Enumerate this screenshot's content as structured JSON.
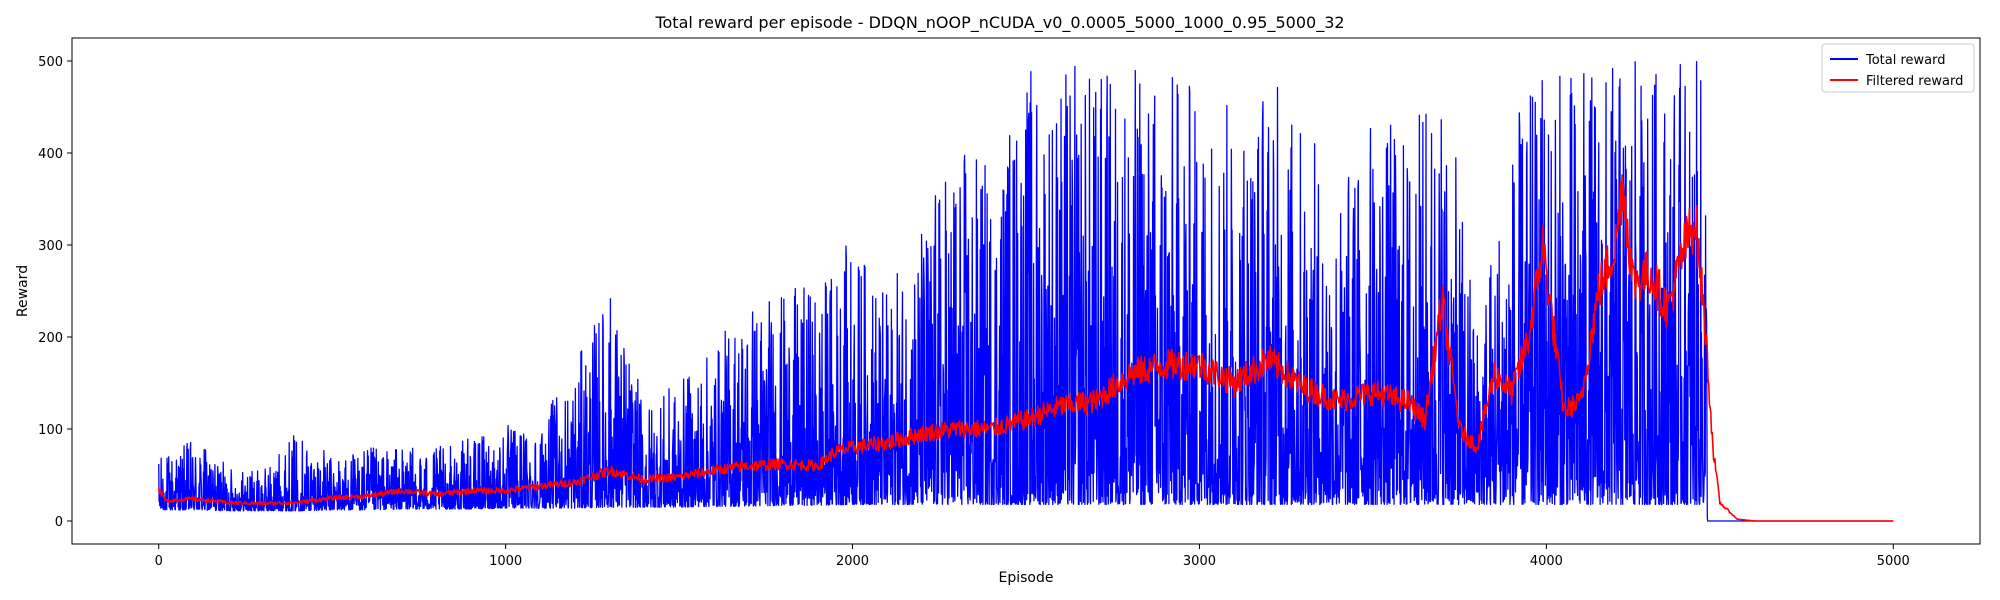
{
  "chart_data": {
    "type": "line",
    "title": "Total reward per episode - DDQN_nOOP_nCUDA_v0_0.0005_5000_1000_0.95_5000_32",
    "xlabel": "Episode",
    "ylabel": "Reward",
    "xlim": [
      -250,
      5250
    ],
    "ylim": [
      -25,
      525
    ],
    "xticks": [
      0,
      1000,
      2000,
      3000,
      4000,
      5000
    ],
    "yticks": [
      0,
      100,
      200,
      300,
      400,
      500
    ],
    "grid": false,
    "legend": "top-right",
    "episodes": 5000,
    "series": [
      {
        "name": "Total reward",
        "color": "#0000ff",
        "x": [
          0,
          100,
          200,
          300,
          400,
          500,
          600,
          700,
          800,
          900,
          1000,
          1100,
          1200,
          1300,
          1400,
          1500,
          1600,
          1700,
          1800,
          1900,
          2000,
          2100,
          2200,
          2300,
          2400,
          2500,
          2600,
          2700,
          2800,
          2900,
          3000,
          3100,
          3200,
          3300,
          3400,
          3500,
          3600,
          3700,
          3800,
          3900,
          4000,
          4100,
          4200,
          4300,
          4400,
          4460,
          4465,
          5000
        ],
        "low": [
          12,
          12,
          11,
          11,
          11,
          12,
          12,
          13,
          13,
          13,
          14,
          14,
          14,
          15,
          15,
          15,
          16,
          16,
          17,
          17,
          18,
          18,
          18,
          18,
          18,
          18,
          18,
          18,
          18,
          18,
          18,
          18,
          18,
          18,
          18,
          18,
          18,
          18,
          18,
          18,
          18,
          18,
          18,
          18,
          18,
          18,
          0,
          0
        ],
        "high": [
          70,
          90,
          60,
          55,
          100,
          70,
          80,
          80,
          80,
          90,
          105,
          110,
          170,
          257,
          130,
          150,
          190,
          250,
          250,
          260,
          310,
          250,
          330,
          420,
          390,
          500,
          500,
          500,
          500,
          500,
          480,
          460,
          500,
          440,
          360,
          450,
          430,
          500,
          230,
          430,
          500,
          500,
          500,
          500,
          500,
          500,
          0,
          0
        ]
      },
      {
        "name": "Filtered reward",
        "color": "#ff0000",
        "x": [
          0,
          20,
          100,
          200,
          300,
          400,
          500,
          600,
          700,
          800,
          900,
          1000,
          1100,
          1200,
          1300,
          1400,
          1500,
          1600,
          1700,
          1800,
          1900,
          1950,
          2000,
          2100,
          2200,
          2300,
          2400,
          2500,
          2600,
          2700,
          2800,
          2900,
          3000,
          3100,
          3200,
          3300,
          3400,
          3500,
          3600,
          3650,
          3700,
          3750,
          3800,
          3850,
          3900,
          3950,
          3990,
          4050,
          4100,
          4150,
          4200,
          4220,
          4250,
          4300,
          4350,
          4400,
          4430,
          4460,
          4480,
          4500,
          4550,
          4600,
          5000
        ],
        "y": [
          35,
          22,
          24,
          20,
          19,
          20,
          25,
          27,
          33,
          29,
          33,
          33,
          38,
          42,
          55,
          45,
          48,
          55,
          60,
          62,
          60,
          75,
          80,
          85,
          95,
          100,
          100,
          110,
          125,
          130,
          160,
          170,
          170,
          150,
          175,
          145,
          130,
          140,
          130,
          110,
          240,
          100,
          80,
          160,
          140,
          200,
          300,
          120,
          130,
          250,
          300,
          370,
          260,
          270,
          230,
          300,
          330,
          200,
          80,
          20,
          2,
          0,
          0
        ]
      }
    ]
  }
}
